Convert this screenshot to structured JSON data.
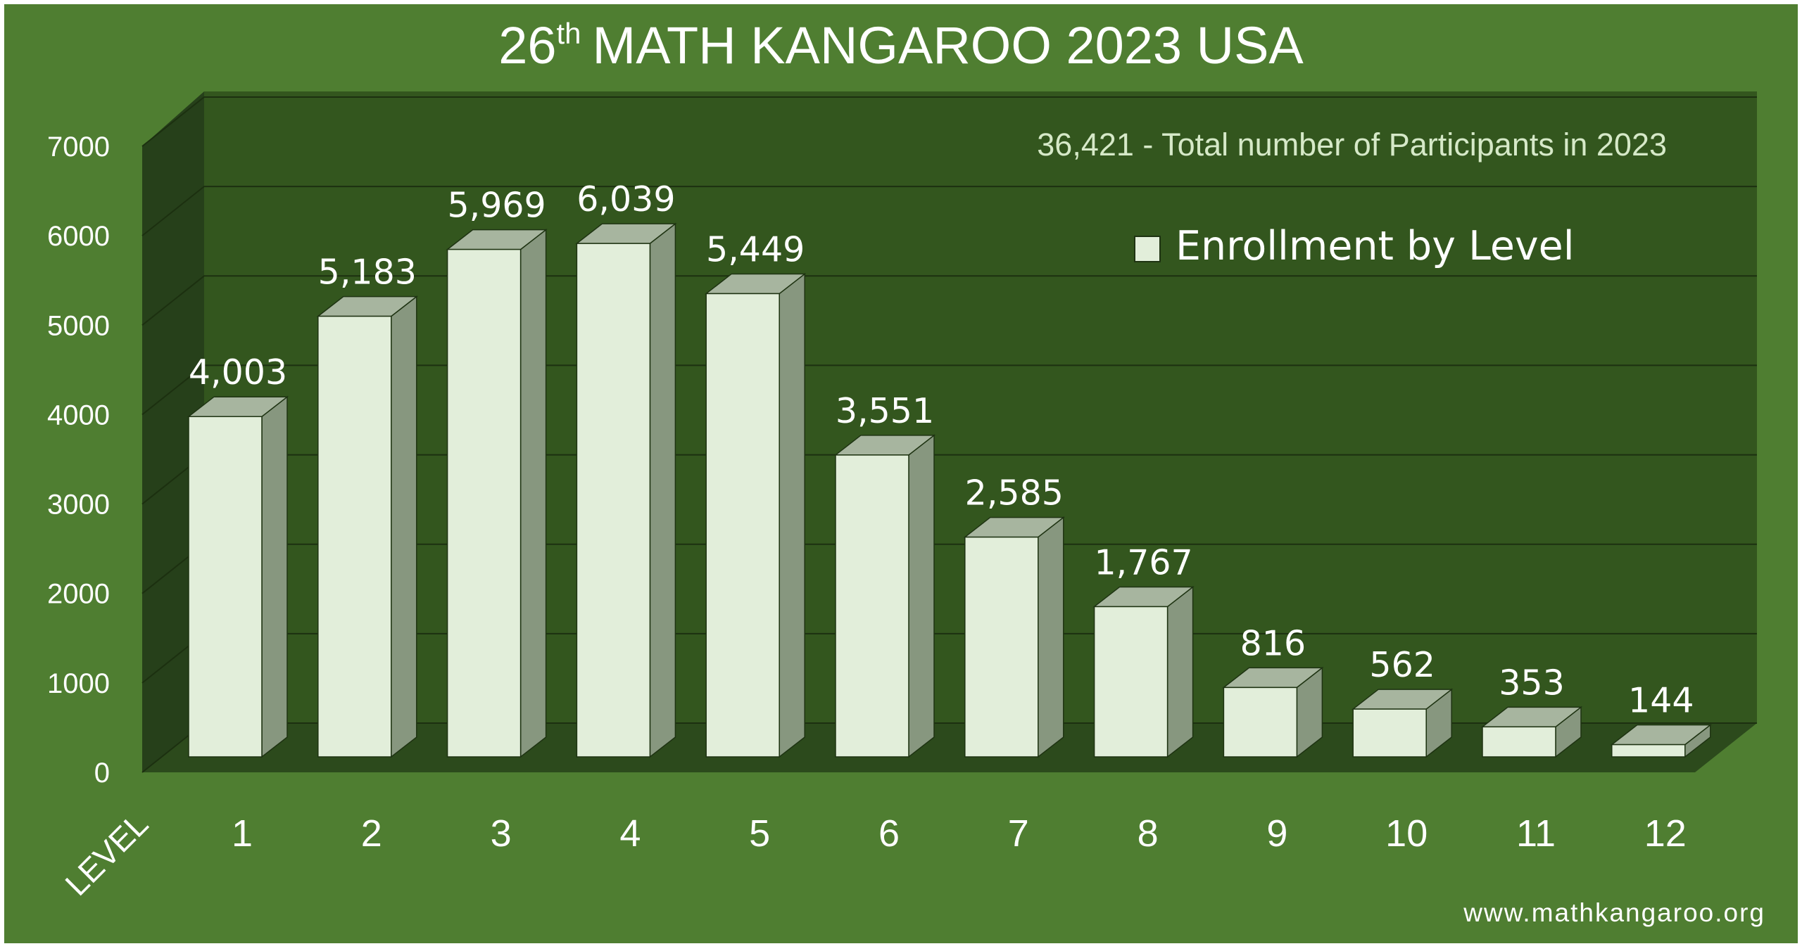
{
  "title": {
    "ordinal_num": "26",
    "ordinal_suffix": "th",
    "main": "MATH KANGAROO 2023 USA"
  },
  "subtitle": "36,421 - Total number of Participants in 2023",
  "legend_label": "Enrollment by Level",
  "x_axis_label": "LEVEL",
  "website": "www.mathkangaroo.org",
  "colors": {
    "background": "#4F7E31",
    "plot_back": "#33561E",
    "bar_front": "#E2EEDA",
    "bar_side": "#87977F",
    "bar_top": "#A7B59F",
    "text": "#FFFFFF",
    "subtitle": "#D6E9C8"
  },
  "chart_data": {
    "type": "bar",
    "categories": [
      "1",
      "2",
      "3",
      "4",
      "5",
      "6",
      "7",
      "8",
      "9",
      "10",
      "11",
      "12"
    ],
    "series": [
      {
        "name": "Enrollment by Level",
        "values": [
          4003,
          5183,
          5969,
          6039,
          5449,
          3551,
          2585,
          1767,
          816,
          562,
          353,
          144
        ]
      }
    ],
    "value_labels": [
      "4,003",
      "5,183",
      "5,969",
      "6,039",
      "5,449",
      "3,551",
      "2,585",
      "1,767",
      "816",
      "562",
      "353",
      "144"
    ],
    "yticks": [
      "0",
      "1000",
      "2000",
      "3000",
      "4000",
      "5000",
      "6000",
      "7000"
    ],
    "ylim": [
      0,
      7000
    ],
    "grid": true,
    "legend_position": "top-right",
    "three_d": true
  }
}
